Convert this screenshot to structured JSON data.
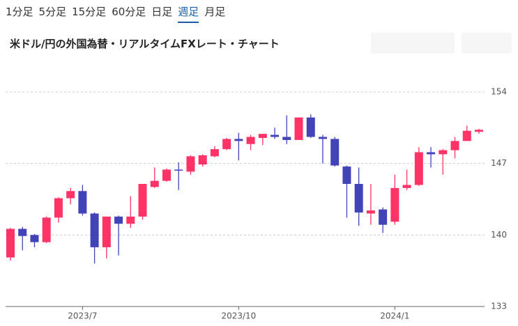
{
  "tabs": {
    "items": [
      "1分足",
      "5分足",
      "15分足",
      "60分足",
      "日足",
      "週足",
      "月足"
    ],
    "selected": 5
  },
  "chart_data": {
    "type": "candlestick",
    "title": "米ドル/円の外国為替・リアルタイムFXレート・チャート",
    "categories": [
      null,
      null,
      null,
      null,
      null,
      null,
      "2023/7",
      null,
      null,
      null,
      null,
      null,
      null,
      null,
      null,
      null,
      null,
      null,
      null,
      "2023/10",
      null,
      null,
      null,
      null,
      null,
      null,
      null,
      null,
      null,
      null,
      null,
      null,
      "2024/1",
      null,
      null,
      null,
      null,
      null,
      null,
      null
    ],
    "open": [
      137.8,
      140.6,
      140.0,
      139.3,
      141.7,
      143.6,
      144.3,
      142.1,
      138.8,
      141.8,
      141.1,
      141.8,
      144.7,
      145.3,
      146.4,
      146.2,
      146.9,
      147.7,
      148.4,
      149.4,
      148.9,
      149.5,
      149.8,
      149.6,
      149.3,
      151.5,
      149.6,
      149.4,
      146.7,
      145.0,
      142.1,
      142.5,
      141.3,
      144.6,
      144.9,
      148.1,
      147.9,
      148.3,
      149.2,
      150.1
    ],
    "high": [
      140.7,
      140.8,
      140.1,
      141.8,
      143.7,
      144.6,
      144.9,
      142.2,
      141.8,
      141.9,
      143.8,
      145.0,
      146.6,
      146.5,
      147.1,
      147.8,
      147.9,
      148.7,
      149.5,
      150.0,
      149.8,
      149.9,
      150.5,
      151.7,
      151.5,
      151.8,
      149.8,
      149.6,
      146.8,
      146.6,
      145.0,
      142.7,
      145.9,
      146.4,
      148.6,
      148.6,
      148.4,
      149.6,
      150.7,
      150.4
    ],
    "low": [
      137.5,
      138.5,
      138.8,
      139.2,
      141.2,
      143.0,
      141.9,
      137.2,
      137.7,
      138.0,
      140.7,
      141.5,
      144.6,
      145.2,
      144.4,
      145.9,
      146.7,
      147.6,
      148.3,
      147.3,
      148.3,
      148.8,
      149.4,
      148.9,
      149.3,
      149.5,
      147.0,
      146.7,
      141.7,
      140.9,
      141.0,
      140.2,
      141.0,
      144.4,
      144.8,
      146.6,
      145.9,
      147.5,
      149.2,
      149.9
    ],
    "close": [
      140.6,
      139.9,
      139.3,
      141.7,
      143.6,
      144.3,
      142.1,
      138.8,
      141.8,
      141.1,
      141.8,
      145.0,
      145.3,
      146.4,
      146.3,
      147.7,
      147.8,
      148.4,
      149.4,
      149.2,
      149.6,
      149.9,
      149.6,
      149.3,
      151.5,
      149.6,
      149.4,
      146.8,
      145.0,
      142.2,
      142.4,
      141.0,
      144.6,
      144.9,
      148.1,
      147.9,
      148.3,
      149.2,
      150.2,
      150.3
    ],
    "up_color": "#ff3366",
    "down_color": "#4343b8",
    "ylim": [
      133,
      154
    ],
    "yticks": [
      133,
      140,
      147,
      154
    ],
    "grid": true
  }
}
